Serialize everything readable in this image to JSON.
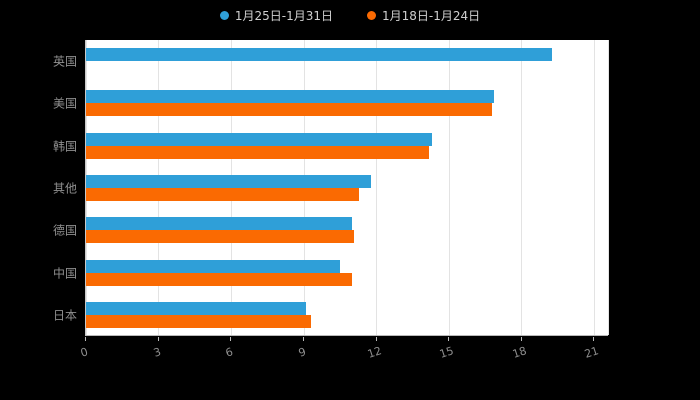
{
  "page": {
    "background": "#000000"
  },
  "chart_data": {
    "type": "bar",
    "orientation": "horizontal",
    "title": "",
    "xlabel": "",
    "ylabel": "",
    "categories": [
      "英国",
      "美国",
      "韩国",
      "其他",
      "德国",
      "中国",
      "日本"
    ],
    "series": [
      {
        "name": "1月25日-1月31日",
        "color": "#2f9fd8",
        "values": [
          19.3,
          16.9,
          14.3,
          11.8,
          11.0,
          10.5,
          9.1
        ]
      },
      {
        "name": "1月18日-1月24日",
        "color": "#fa6a02",
        "values": [
          0,
          16.8,
          14.2,
          11.3,
          11.1,
          11.0,
          9.3
        ]
      }
    ],
    "x_ticks": [
      "0",
      "3",
      "6",
      "9",
      "12",
      "15",
      "18",
      "21"
    ],
    "x_tick_values": [
      0,
      3,
      6,
      9,
      12,
      15,
      18,
      21
    ],
    "xlim": [
      0,
      21.6
    ],
    "grid": true,
    "legend_position": "top",
    "plot_background": "#ffffff",
    "grid_color": "#e3e3e3",
    "axis_color": "#bbbbbb",
    "label_color": "#8f8f8f",
    "legend_text_color": "#cfcfcf"
  }
}
